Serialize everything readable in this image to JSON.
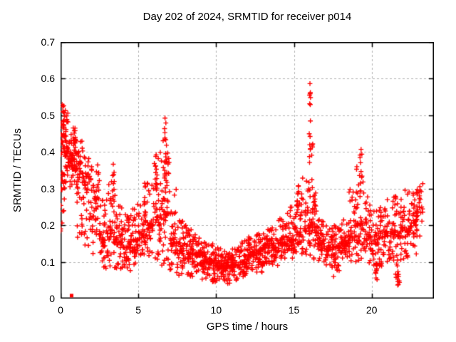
{
  "title": "Day 202 of 2024, SRMTID for receiver p014",
  "chart_data": {
    "type": "scatter",
    "title": "Day 202 of 2024, SRMTID for receiver p014",
    "xlabel": "GPS time / hours",
    "ylabel": "SRMTID / TECUs",
    "xlim": [
      0,
      24
    ],
    "ylim": [
      0,
      0.7
    ],
    "x_ticks": [
      {
        "value": 0,
        "label": "0"
      },
      {
        "value": 5,
        "label": "5"
      },
      {
        "value": 10,
        "label": "10"
      },
      {
        "value": 15,
        "label": "15"
      },
      {
        "value": 20,
        "label": "20"
      }
    ],
    "y_ticks": [
      {
        "value": 0.0,
        "label": "0"
      },
      {
        "value": 0.1,
        "label": "0.1"
      },
      {
        "value": 0.2,
        "label": "0.2"
      },
      {
        "value": 0.3,
        "label": "0.3"
      },
      {
        "value": 0.4,
        "label": "0.4"
      },
      {
        "value": 0.5,
        "label": "0.5"
      },
      {
        "value": 0.6,
        "label": "0.6"
      },
      {
        "value": 0.7,
        "label": "0.7"
      }
    ],
    "grid": true,
    "legend": "none",
    "marker": "plus",
    "marker_color": "#ff0000",
    "grid_color": "#b3b3b3",
    "axis_color": "#000000",
    "seed": 20240202,
    "profile_format": "[hour_start, hour_end, y_min, y_max, y_mode, n_points]",
    "profile": [
      [
        0.0,
        0.25,
        0.14,
        0.53,
        0.4,
        40
      ],
      [
        0.25,
        0.5,
        0.3,
        0.52,
        0.4,
        34
      ],
      [
        0.5,
        0.75,
        0.3,
        0.46,
        0.38,
        30
      ],
      [
        0.75,
        1.0,
        0.32,
        0.47,
        0.38,
        30
      ],
      [
        1.0,
        1.5,
        0.15,
        0.43,
        0.33,
        54
      ],
      [
        1.5,
        2.0,
        0.14,
        0.4,
        0.31,
        44
      ],
      [
        2.0,
        2.5,
        0.12,
        0.37,
        0.27,
        42
      ],
      [
        2.5,
        3.0,
        0.07,
        0.27,
        0.16,
        44
      ],
      [
        3.0,
        3.5,
        0.08,
        0.33,
        0.18,
        44
      ],
      [
        3.5,
        4.0,
        0.08,
        0.26,
        0.16,
        44
      ],
      [
        4.0,
        4.5,
        0.07,
        0.23,
        0.14,
        44
      ],
      [
        4.5,
        5.0,
        0.09,
        0.26,
        0.16,
        44
      ],
      [
        5.0,
        5.5,
        0.1,
        0.3,
        0.18,
        42
      ],
      [
        5.5,
        6.0,
        0.1,
        0.33,
        0.2,
        42
      ],
      [
        6.0,
        6.5,
        0.1,
        0.4,
        0.22,
        42
      ],
      [
        6.5,
        7.0,
        0.08,
        0.45,
        0.23,
        42
      ],
      [
        7.0,
        7.5,
        0.07,
        0.3,
        0.15,
        44
      ],
      [
        7.5,
        8.0,
        0.06,
        0.22,
        0.13,
        46
      ],
      [
        8.0,
        8.5,
        0.06,
        0.2,
        0.12,
        46
      ],
      [
        8.5,
        9.0,
        0.07,
        0.18,
        0.12,
        46
      ],
      [
        9.0,
        9.5,
        0.05,
        0.16,
        0.1,
        46
      ],
      [
        9.5,
        10.0,
        0.04,
        0.15,
        0.1,
        46
      ],
      [
        10.0,
        10.5,
        0.04,
        0.14,
        0.09,
        46
      ],
      [
        10.5,
        11.0,
        0.04,
        0.13,
        0.085,
        46
      ],
      [
        11.0,
        11.5,
        0.05,
        0.14,
        0.09,
        46
      ],
      [
        11.5,
        12.0,
        0.06,
        0.16,
        0.1,
        46
      ],
      [
        12.0,
        12.5,
        0.07,
        0.17,
        0.12,
        46
      ],
      [
        12.5,
        13.0,
        0.07,
        0.18,
        0.13,
        46
      ],
      [
        13.0,
        13.5,
        0.09,
        0.19,
        0.14,
        46
      ],
      [
        13.5,
        14.0,
        0.09,
        0.2,
        0.14,
        46
      ],
      [
        14.0,
        14.5,
        0.1,
        0.22,
        0.15,
        44
      ],
      [
        14.5,
        15.0,
        0.1,
        0.25,
        0.16,
        44
      ],
      [
        15.0,
        15.5,
        0.12,
        0.29,
        0.18,
        42
      ],
      [
        15.5,
        16.0,
        0.12,
        0.33,
        0.19,
        38
      ],
      [
        16.0,
        16.5,
        0.1,
        0.32,
        0.2,
        40
      ],
      [
        16.5,
        17.0,
        0.1,
        0.22,
        0.15,
        44
      ],
      [
        17.0,
        17.5,
        0.07,
        0.2,
        0.14,
        44
      ],
      [
        17.5,
        18.0,
        0.06,
        0.2,
        0.14,
        44
      ],
      [
        18.0,
        18.5,
        0.1,
        0.22,
        0.15,
        44
      ],
      [
        18.5,
        19.0,
        0.1,
        0.3,
        0.17,
        42
      ],
      [
        19.0,
        19.5,
        0.1,
        0.36,
        0.2,
        40
      ],
      [
        19.5,
        20.0,
        0.08,
        0.28,
        0.17,
        42
      ],
      [
        20.0,
        20.5,
        0.05,
        0.25,
        0.15,
        42
      ],
      [
        20.5,
        21.0,
        0.08,
        0.26,
        0.17,
        42
      ],
      [
        21.0,
        21.5,
        0.1,
        0.28,
        0.18,
        42
      ],
      [
        21.5,
        22.0,
        0.04,
        0.28,
        0.18,
        42
      ],
      [
        22.0,
        22.5,
        0.1,
        0.3,
        0.19,
        42
      ],
      [
        22.5,
        23.0,
        0.12,
        0.32,
        0.21,
        38
      ],
      [
        23.0,
        23.3,
        0.15,
        0.32,
        0.25,
        16
      ]
    ],
    "spike_format": "[hour, y_min, y_max, n_points]",
    "spikes": [
      [
        0.2,
        0.44,
        0.53,
        12
      ],
      [
        0.35,
        0.42,
        0.5,
        8
      ],
      [
        0.9,
        0.4,
        0.47,
        8
      ],
      [
        3.4,
        0.26,
        0.37,
        9
      ],
      [
        5.4,
        0.22,
        0.33,
        9
      ],
      [
        6.15,
        0.28,
        0.43,
        11
      ],
      [
        6.75,
        0.32,
        0.5,
        14
      ],
      [
        6.9,
        0.22,
        0.38,
        9
      ],
      [
        15.25,
        0.2,
        0.31,
        10
      ],
      [
        16.0,
        0.28,
        0.635,
        16
      ],
      [
        16.15,
        0.2,
        0.44,
        8
      ],
      [
        16.35,
        0.14,
        0.3,
        8
      ],
      [
        19.3,
        0.2,
        0.41,
        12
      ],
      [
        20.3,
        0.05,
        0.1,
        6
      ],
      [
        21.7,
        0.03,
        0.1,
        8
      ],
      [
        22.9,
        0.2,
        0.32,
        9
      ]
    ],
    "notable_points": {
      "max": {
        "x": 16.0,
        "y": 0.63
      },
      "secondary_peaks": [
        {
          "x": 0.2,
          "y": 0.53
        },
        {
          "x": 6.75,
          "y": 0.5
        },
        {
          "x": 19.3,
          "y": 0.41
        }
      ],
      "min": {
        "x": 21.7,
        "y": 0.03
      }
    },
    "outlier_square": {
      "x": 0.71,
      "y": 0.008,
      "marker": "filled-square",
      "color": "#ff0000"
    }
  }
}
